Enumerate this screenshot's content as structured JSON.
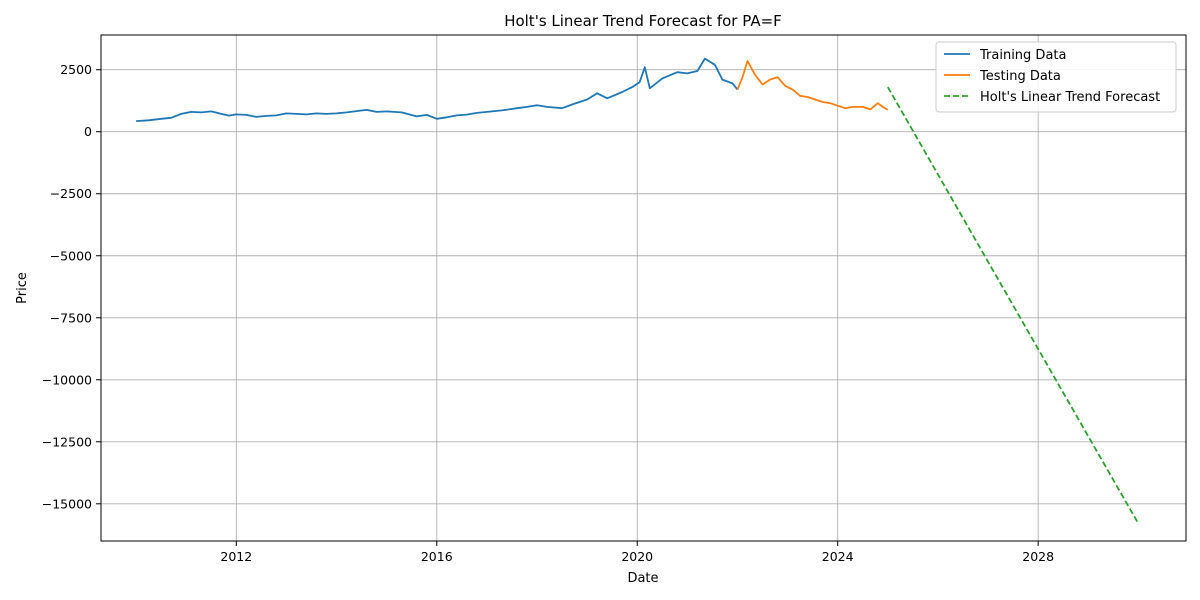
{
  "chart_data": {
    "type": "line",
    "title": "Holt's Linear Trend Forecast for PA=F",
    "xlabel": "Date",
    "ylabel": "Price",
    "xlim": [
      2009.3,
      2030.95
    ],
    "ylim": [
      -16500,
      3900
    ],
    "x_ticks": [
      2012,
      2016,
      2020,
      2024,
      2028
    ],
    "x_tick_labels": [
      "2012",
      "2016",
      "2020",
      "2024",
      "2028"
    ],
    "y_ticks": [
      2500,
      0,
      -2500,
      -5000,
      -7500,
      -10000,
      -12500,
      -15000
    ],
    "y_tick_labels": [
      "2500",
      "0",
      "−2500",
      "−5000",
      "−7500",
      "−10000",
      "−12500",
      "−15000"
    ],
    "grid": true,
    "legend_position": "top-right",
    "series": [
      {
        "name": "Training Data",
        "color": "#1f77b4",
        "style": "solid",
        "x": [
          2010.0,
          2010.25,
          2010.5,
          2010.7,
          2010.9,
          2011.1,
          2011.3,
          2011.5,
          2011.7,
          2011.85,
          2012.0,
          2012.2,
          2012.4,
          2012.6,
          2012.8,
          2013.0,
          2013.2,
          2013.4,
          2013.6,
          2013.8,
          2014.0,
          2014.2,
          2014.4,
          2014.6,
          2014.8,
          2015.0,
          2015.3,
          2015.6,
          2015.8,
          2016.0,
          2016.2,
          2016.4,
          2016.6,
          2016.8,
          2017.0,
          2017.3,
          2017.6,
          2017.8,
          2018.0,
          2018.2,
          2018.5,
          2018.7,
          2019.0,
          2019.2,
          2019.4,
          2019.7,
          2019.9,
          2020.05,
          2020.15,
          2020.25,
          2020.5,
          2020.8,
          2021.0,
          2021.2,
          2021.35,
          2021.55,
          2021.7,
          2021.9,
          2022.0
        ],
        "y": [
          430,
          460,
          520,
          560,
          720,
          800,
          780,
          820,
          720,
          650,
          700,
          680,
          600,
          640,
          660,
          740,
          720,
          700,
          740,
          720,
          740,
          780,
          830,
          880,
          800,
          820,
          780,
          620,
          680,
          520,
          580,
          660,
          690,
          760,
          800,
          860,
          950,
          1000,
          1070,
          1000,
          950,
          1100,
          1300,
          1550,
          1350,
          1600,
          1800,
          2000,
          2600,
          1750,
          2150,
          2400,
          2350,
          2450,
          2950,
          2700,
          2100,
          1950,
          1700
        ]
      },
      {
        "name": "Testing Data",
        "color": "#ff7f0e",
        "style": "solid",
        "x": [
          2022.0,
          2022.1,
          2022.2,
          2022.35,
          2022.5,
          2022.65,
          2022.8,
          2022.95,
          2023.1,
          2023.25,
          2023.4,
          2023.55,
          2023.7,
          2023.85,
          2024.0,
          2024.15,
          2024.3,
          2024.5,
          2024.65,
          2024.8,
          2024.9,
          2025.0
        ],
        "y": [
          1700,
          2200,
          2850,
          2300,
          1900,
          2100,
          2200,
          1850,
          1700,
          1450,
          1400,
          1300,
          1200,
          1150,
          1050,
          950,
          1000,
          1000,
          900,
          1150,
          1000,
          880
        ]
      },
      {
        "name": "Holt's Linear Trend Forecast",
        "color": "#2ca02c",
        "style": "dashed",
        "x": [
          2025.0,
          2030.0
        ],
        "y": [
          1800,
          -15800
        ]
      }
    ]
  }
}
